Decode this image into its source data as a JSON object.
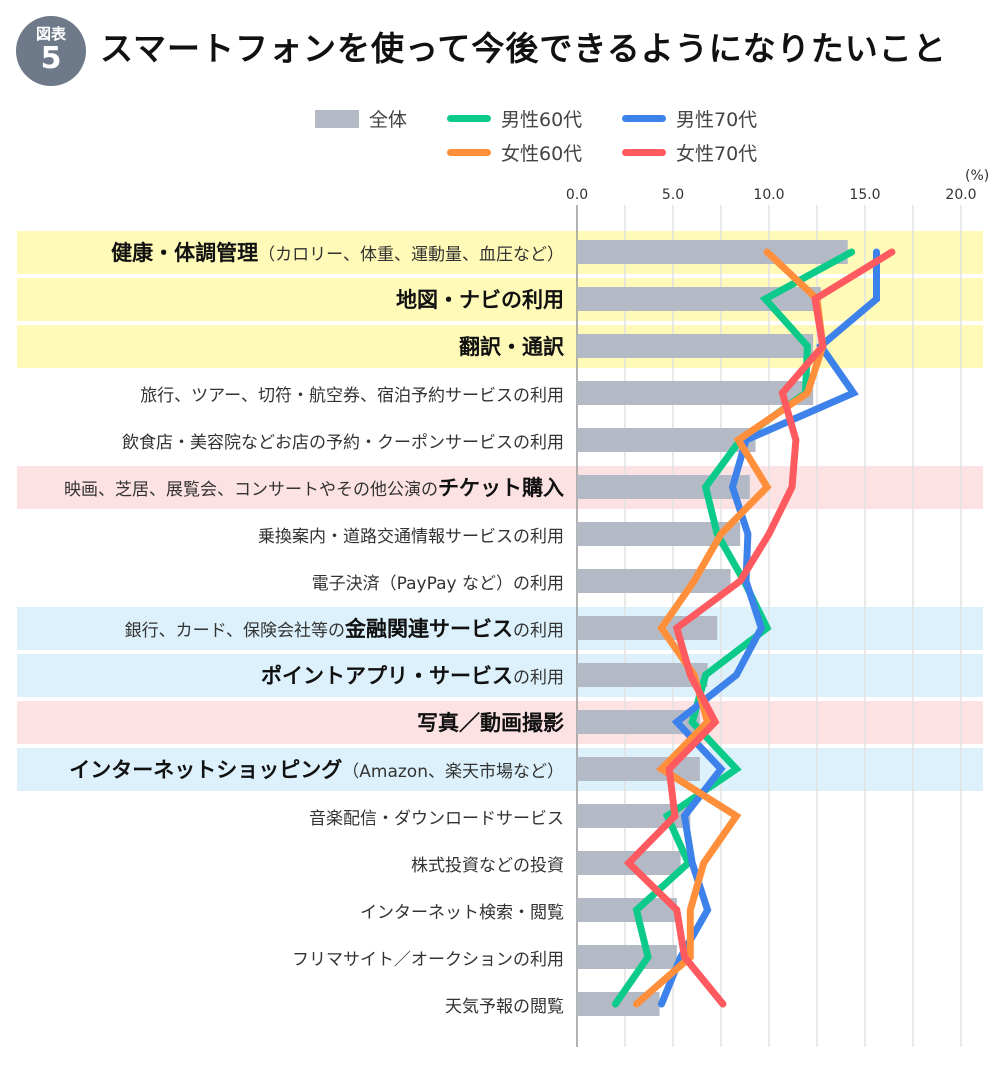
{
  "header": {
    "badge_top": "図表",
    "badge_num": "5",
    "title": "スマートフォンを使って今後できるようになりたいこと"
  },
  "legend": [
    {
      "label": "全体",
      "type": "bar",
      "color": "#b3bac6"
    },
    {
      "label": "男性60代",
      "type": "line",
      "color": "#0ccb8a"
    },
    {
      "label": "男性70代",
      "type": "line",
      "color": "#3d82eb"
    },
    {
      "label": "女性60代",
      "type": "line",
      "color": "#ff8f3b"
    },
    {
      "label": "女性70代",
      "type": "line",
      "color": "#ff5a5f"
    }
  ],
  "axis": {
    "unit": "(%)",
    "ticks": [
      "0.0",
      "5.0",
      "10.0",
      "15.0",
      "20.0"
    ]
  },
  "rows": [
    {
      "parts": [
        {
          "t": "健康・体調管理",
          "b": true
        },
        {
          "t": "（カロリー、体重、運動量、血圧など）",
          "b": false
        }
      ],
      "band": "yellow"
    },
    {
      "parts": [
        {
          "t": "地図・ナビの利用",
          "b": true
        }
      ],
      "band": "yellow"
    },
    {
      "parts": [
        {
          "t": "翻訳・通訳",
          "b": true
        }
      ],
      "band": "yellow"
    },
    {
      "parts": [
        {
          "t": "旅行、ツアー、切符・航空券、宿泊予約サービスの利用",
          "b": false
        }
      ],
      "band": "none"
    },
    {
      "parts": [
        {
          "t": "飲食店・美容院などお店の予約・クーポンサービスの利用",
          "b": false
        }
      ],
      "band": "none"
    },
    {
      "parts": [
        {
          "t": "映画、芝居、展覧会、コンサートやその他公演の",
          "b": false
        },
        {
          "t": "チケット購入",
          "b": true
        }
      ],
      "band": "pink"
    },
    {
      "parts": [
        {
          "t": "乗換案内・道路交通情報サービスの利用",
          "b": false
        }
      ],
      "band": "none"
    },
    {
      "parts": [
        {
          "t": "電子決済（PayPay など）の利用",
          "b": false
        }
      ],
      "band": "none"
    },
    {
      "parts": [
        {
          "t": "銀行、カード、保険会社等の",
          "b": false
        },
        {
          "t": "金融関連サービス",
          "b": true
        },
        {
          "t": "の利用",
          "b": false
        }
      ],
      "band": "blue"
    },
    {
      "parts": [
        {
          "t": "ポイントアプリ・サービス",
          "b": true
        },
        {
          "t": "の利用",
          "b": false
        }
      ],
      "band": "blue"
    },
    {
      "parts": [
        {
          "t": "写真／動画撮影",
          "b": true
        }
      ],
      "band": "pink"
    },
    {
      "parts": [
        {
          "t": "インターネットショッピング",
          "b": true
        },
        {
          "t": "（Amazon、楽天市場など）",
          "b": false
        }
      ],
      "band": "blue"
    },
    {
      "parts": [
        {
          "t": "音楽配信・ダウンロードサービス",
          "b": false
        }
      ],
      "band": "none"
    },
    {
      "parts": [
        {
          "t": "株式投資などの投資",
          "b": false
        }
      ],
      "band": "none"
    },
    {
      "parts": [
        {
          "t": "インターネット検索・閲覧",
          "b": false
        }
      ],
      "band": "none"
    },
    {
      "parts": [
        {
          "t": "フリマサイト／オークションの利用",
          "b": false
        }
      ],
      "band": "none"
    },
    {
      "parts": [
        {
          "t": "天気予報の閲覧",
          "b": false
        }
      ],
      "band": "none"
    }
  ],
  "band_colors": {
    "yellow": "#fffab8",
    "pink": "#fde2e4",
    "blue": "#dcf1fb"
  },
  "chart_data": {
    "type": "bar",
    "title": "スマートフォンを使って今後できるようになりたいこと",
    "xlabel": "(%)",
    "ylabel": "",
    "xlim": [
      0,
      21
    ],
    "orientation": "horizontal",
    "grid": true,
    "legend_position": "top",
    "categories": [
      "健康・体調管理（カロリー、体重、運動量、血圧など）",
      "地図・ナビの利用",
      "翻訳・通訳",
      "旅行、ツアー、切符・航空券、宿泊予約サービスの利用",
      "飲食店・美容院などお店の予約・クーポンサービスの利用",
      "映画、芝居、展覧会、コンサートやその他公演のチケット購入",
      "乗換案内・道路交通情報サービスの利用",
      "電子決済（PayPay など）の利用",
      "銀行、カード、保険会社等の金融関連サービスの利用",
      "ポイントアプリ・サービスの利用",
      "写真／動画撮影",
      "インターネットショッピング（Amazon、楽天市場など）",
      "音楽配信・ダウンロードサービス",
      "株式投資などの投資",
      "インターネット検索・閲覧",
      "フリマサイト／オークションの利用",
      "天気予報の閲覧"
    ],
    "series": [
      {
        "name": "全体",
        "type": "bar",
        "color": "#b3bac6",
        "values": [
          14.1,
          12.7,
          12.3,
          12.3,
          9.3,
          9.0,
          8.5,
          8.0,
          7.3,
          6.8,
          6.4,
          6.4,
          5.9,
          5.4,
          5.2,
          5.2,
          4.3
        ]
      },
      {
        "name": "男性60代",
        "type": "line",
        "color": "#0ccb8a",
        "values": [
          14.3,
          9.8,
          12.0,
          11.9,
          8.5,
          6.7,
          7.3,
          8.7,
          9.9,
          6.7,
          6.0,
          8.3,
          4.7,
          5.8,
          3.1,
          3.7,
          2.0
        ]
      },
      {
        "name": "男性70代",
        "type": "line",
        "color": "#3d82eb",
        "values": [
          15.6,
          15.6,
          12.7,
          14.4,
          8.8,
          8.1,
          8.9,
          8.8,
          9.6,
          8.3,
          5.2,
          7.5,
          5.6,
          6.0,
          6.8,
          5.4,
          4.4
        ]
      },
      {
        "name": "女性60代",
        "type": "line",
        "color": "#ff8f3b",
        "values": [
          9.9,
          12.5,
          12.8,
          12.0,
          8.4,
          9.9,
          7.5,
          6.1,
          4.4,
          6.1,
          6.8,
          4.4,
          8.3,
          6.6,
          5.9,
          5.9,
          3.1
        ]
      },
      {
        "name": "女性70代",
        "type": "line",
        "color": "#ff5a5f",
        "values": [
          16.4,
          12.4,
          12.8,
          10.7,
          11.4,
          11.2,
          10.0,
          8.5,
          5.2,
          5.9,
          7.2,
          4.8,
          5.1,
          2.7,
          5.2,
          5.6,
          7.6
        ]
      }
    ]
  }
}
